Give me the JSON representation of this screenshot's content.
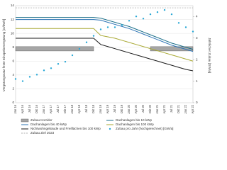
{
  "chart_data": {
    "type": "line",
    "ylabel": "Vergütungssatz feste Einspeisevergütung [ct/kWh]",
    "y2label": "Jährlicher Zubau [GW/a]",
    "categories": [
      "Jan 16",
      "Apr 16",
      "Jul 16",
      "Okt 16",
      "Jan 17",
      "Apr 17",
      "Jul 17",
      "Okt 17",
      "Jan 18",
      "Apr 18",
      "Jul 18",
      "Okt 18",
      "Jan 19",
      "Apr 19",
      "Jul 19",
      "Okt 19",
      "Jan 20",
      "Apr 20",
      "Jul 20",
      "Okt 20",
      "Jan 21",
      "Apr 21",
      "Jul 21",
      "Okt 21",
      "Jan 22",
      "Apr 22"
    ],
    "ylim": [
      0,
      14
    ],
    "yticks": [
      0,
      2,
      4,
      6,
      8,
      10,
      12,
      14
    ],
    "y2lim": [
      0,
      4.5
    ],
    "y2ticks": [
      0,
      1,
      2,
      3,
      4
    ],
    "grid": true,
    "corridor": {
      "name": "Zubau Korridor",
      "color": "#a6a6a6",
      "axis": "y2",
      "ranges": [
        {
          "start": "Jan 16",
          "end": "Okt 18",
          "low": 2.4,
          "high": 2.6
        },
        {
          "start": "Okt 20",
          "end": "Apr 22",
          "low": 2.4,
          "high": 2.6
        }
      ]
    },
    "series": [
      {
        "name": "Dachanlagen bis 10 kWp",
        "color": "#1b6f8a",
        "style": "line",
        "values": [
          12.3,
          12.3,
          12.3,
          12.3,
          12.3,
          12.3,
          12.3,
          12.3,
          12.3,
          12.3,
          12.3,
          12.3,
          12.2,
          11.9,
          11.6,
          11.3,
          11.0,
          10.6,
          10.2,
          9.8,
          9.4,
          9.0,
          8.6,
          8.3,
          8.0,
          7.7
        ]
      },
      {
        "name": "Dachanlagen bis 40 kWp",
        "color": "#2e75b6",
        "style": "line",
        "values": [
          12.0,
          12.0,
          12.0,
          12.0,
          12.0,
          12.0,
          12.0,
          12.0,
          12.0,
          12.0,
          12.0,
          12.0,
          11.9,
          11.6,
          11.3,
          11.0,
          10.7,
          10.3,
          9.9,
          9.5,
          9.1,
          8.7,
          8.3,
          8.0,
          7.7,
          7.4
        ]
      },
      {
        "name": "Dachanlagen bis 100 kWp",
        "color": "#a8a832",
        "style": "line",
        "values": [
          10.7,
          10.7,
          10.7,
          10.7,
          10.7,
          10.7,
          10.7,
          10.7,
          10.7,
          10.7,
          10.7,
          10.7,
          9.7,
          9.5,
          9.3,
          9.0,
          8.7,
          8.4,
          8.1,
          7.8,
          7.5,
          7.2,
          6.9,
          6.6,
          6.3,
          6.0
        ]
      },
      {
        "name": "Nichtwohngebäude und Freiflächen bis 100 kWp",
        "color": "#1a1a1a",
        "style": "line",
        "values": [
          9.3,
          9.3,
          9.3,
          9.3,
          9.3,
          9.3,
          9.3,
          9.3,
          9.3,
          9.3,
          9.3,
          9.3,
          8.4,
          8.1,
          7.8,
          7.5,
          7.2,
          6.9,
          6.6,
          6.3,
          6.0,
          5.7,
          5.4,
          5.1,
          4.8,
          4.6
        ]
      },
      {
        "name": "Zubau pro Jahr (hochgerechnet) [GW/a]",
        "color": "#29a8d6",
        "style": "dots",
        "axis": "y2",
        "values": [
          1.1,
          1.0,
          1.2,
          1.3,
          1.5,
          1.6,
          1.8,
          1.9,
          2.2,
          2.5,
          2.8,
          3.1,
          3.4,
          3.5,
          3.5,
          3.6,
          3.8,
          4.0,
          3.9,
          4.1,
          4.2,
          4.3,
          4.1,
          3.7,
          3.5,
          3.3
        ]
      }
    ],
    "target": {
      "name": "Zubau Ziel 2023",
      "value": 4.4,
      "color": "#999999",
      "axis": "y2"
    }
  }
}
